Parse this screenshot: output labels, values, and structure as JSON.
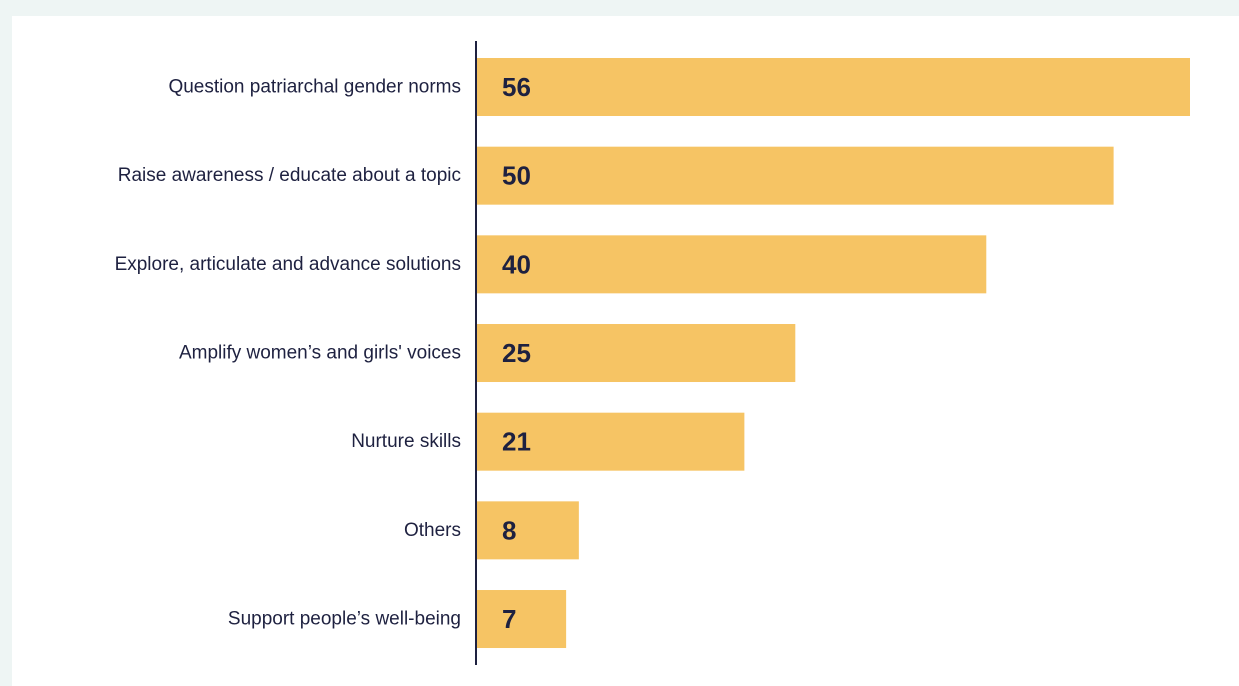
{
  "colors": {
    "background": "#eef5f4",
    "card": "#ffffff",
    "bar": "#f6c464",
    "axis": "#1e2140",
    "text": "#1e2140"
  },
  "chart_data": {
    "type": "bar",
    "orientation": "horizontal",
    "categories": [
      "Question patriarchal gender norms",
      "Raise awareness / educate about a topic",
      "Explore, articulate and advance solutions",
      "Amplify women’s and girls' voices",
      "Nurture skills",
      "Others",
      "Support people’s well-being"
    ],
    "values": [
      56,
      50,
      40,
      25,
      21,
      8,
      7
    ],
    "value_labels": [
      "56",
      "50",
      "40",
      "25",
      "21",
      "8",
      "7"
    ],
    "title": "",
    "xlabel": "",
    "ylabel": "",
    "xlim": [
      0,
      56
    ],
    "grid": false,
    "legend": "none"
  }
}
